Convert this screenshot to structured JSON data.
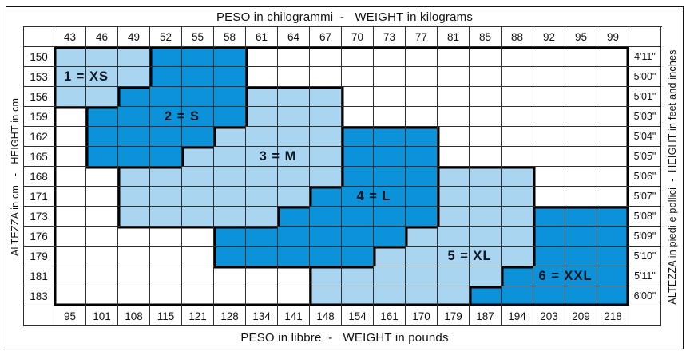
{
  "header": {
    "top_title": "PESO in chilogrammi  -   WEIGHT in kilograms",
    "bottom_title": "PESO in libbre  -   WEIGHT in pounds"
  },
  "axes": {
    "left_label": "ALTEZZA in cm   -   HEIGHT in cm",
    "right_label": "ALTEZZA in piedi e pollici  -  HEIGHT in feet and inches"
  },
  "colors": {
    "size_light": "#a9d5f0",
    "size_dark": "#0b92d8",
    "grid_line": "#2d2d2d",
    "region_border": "#000000"
  },
  "chart_data": {
    "type": "table",
    "title": "Size chart: height vs weight",
    "x_axis_top_kg": [
      43,
      46,
      49,
      52,
      55,
      58,
      61,
      64,
      67,
      70,
      73,
      77,
      81,
      85,
      88,
      92,
      95,
      99
    ],
    "x_axis_bottom_lb": [
      95,
      101,
      108,
      115,
      121,
      128,
      134,
      141,
      148,
      154,
      161,
      170,
      179,
      187,
      194,
      203,
      209,
      218
    ],
    "y_axis_left_cm": [
      150,
      153,
      156,
      159,
      162,
      165,
      168,
      171,
      173,
      176,
      179,
      181,
      183
    ],
    "y_axis_right_ftin": [
      "4'11\"",
      "5'00\"",
      "5'01\"",
      "5'03\"",
      "5'04\"",
      "5'05\"",
      "5'06\"",
      "5'07\"",
      "5'08\"",
      "5'09\"",
      "5'10\"",
      "5'11\"",
      "6'00\""
    ],
    "legend": {
      "1": "XS",
      "2": "S",
      "3": "M",
      "4": "L",
      "5": "XL",
      "6": "XXL"
    },
    "matrix_note": "0 = no size, 1..6 = size region per cm row x kg column",
    "matrix": [
      [
        1,
        1,
        1,
        2,
        2,
        2,
        0,
        0,
        0,
        0,
        0,
        0,
        0,
        0,
        0,
        0,
        0,
        0
      ],
      [
        1,
        1,
        1,
        2,
        2,
        2,
        0,
        0,
        0,
        0,
        0,
        0,
        0,
        0,
        0,
        0,
        0,
        0
      ],
      [
        1,
        1,
        2,
        2,
        2,
        2,
        3,
        3,
        3,
        0,
        0,
        0,
        0,
        0,
        0,
        0,
        0,
        0
      ],
      [
        0,
        2,
        2,
        2,
        2,
        2,
        3,
        3,
        3,
        0,
        0,
        0,
        0,
        0,
        0,
        0,
        0,
        0
      ],
      [
        0,
        2,
        2,
        2,
        2,
        3,
        3,
        3,
        3,
        4,
        4,
        4,
        0,
        0,
        0,
        0,
        0,
        0
      ],
      [
        0,
        2,
        2,
        2,
        3,
        3,
        3,
        3,
        3,
        4,
        4,
        4,
        0,
        0,
        0,
        0,
        0,
        0
      ],
      [
        0,
        0,
        3,
        3,
        3,
        3,
        3,
        3,
        3,
        4,
        4,
        4,
        5,
        5,
        5,
        0,
        0,
        0
      ],
      [
        0,
        0,
        3,
        3,
        3,
        3,
        3,
        3,
        4,
        4,
        4,
        4,
        5,
        5,
        5,
        0,
        0,
        0
      ],
      [
        0,
        0,
        3,
        3,
        3,
        3,
        3,
        4,
        4,
        4,
        4,
        4,
        5,
        5,
        5,
        6,
        6,
        6
      ],
      [
        0,
        0,
        0,
        0,
        0,
        4,
        4,
        4,
        4,
        4,
        4,
        5,
        5,
        5,
        5,
        6,
        6,
        6
      ],
      [
        0,
        0,
        0,
        0,
        0,
        4,
        4,
        4,
        4,
        4,
        5,
        5,
        5,
        5,
        5,
        6,
        6,
        6
      ],
      [
        0,
        0,
        0,
        0,
        0,
        0,
        0,
        0,
        5,
        5,
        5,
        5,
        5,
        5,
        6,
        6,
        6,
        6
      ],
      [
        0,
        0,
        0,
        0,
        0,
        0,
        0,
        0,
        5,
        5,
        5,
        5,
        5,
        6,
        6,
        6,
        6,
        6
      ]
    ],
    "size_labels": [
      {
        "size": "XS",
        "text": "1 = XS",
        "row": 2,
        "col": 1,
        "span": 2
      },
      {
        "size": "S",
        "text": "2 = S",
        "row": 4,
        "col": 4,
        "span": 2
      },
      {
        "size": "M",
        "text": "3 = M",
        "row": 6,
        "col": 7,
        "span": 2
      },
      {
        "size": "L",
        "text": "4 = L",
        "row": 8,
        "col": 10,
        "span": 2
      },
      {
        "size": "XL",
        "text": "5 = XL",
        "row": 11,
        "col": 13,
        "span": 2
      },
      {
        "size": "XXL",
        "text": "6 = XXL",
        "row": 12,
        "col": 16,
        "span": 2
      }
    ]
  }
}
